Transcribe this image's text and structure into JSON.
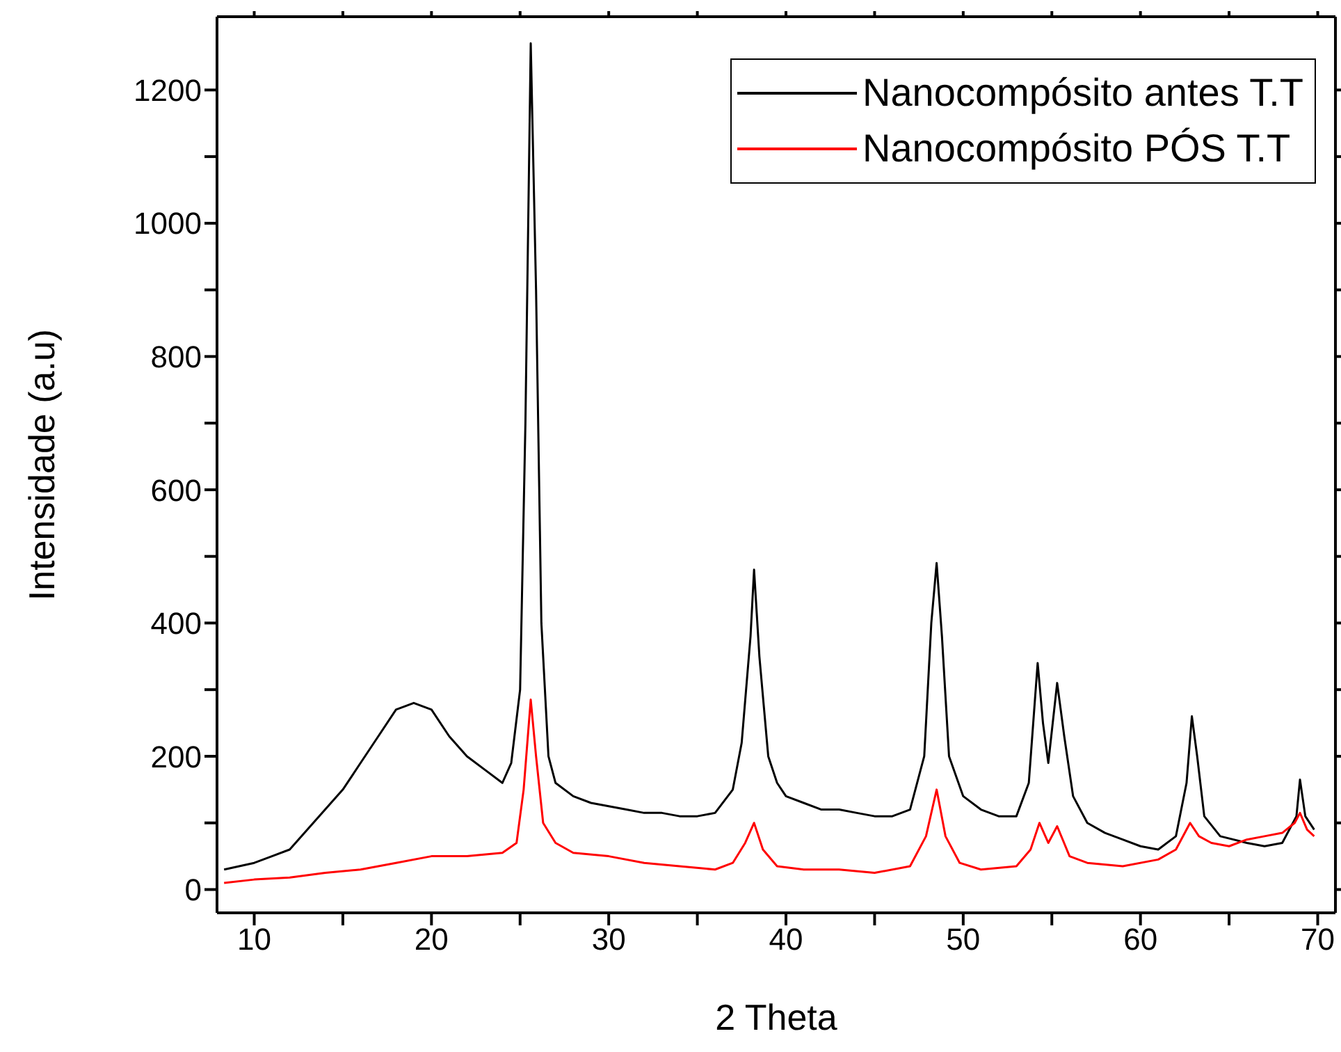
{
  "chart_data": {
    "type": "line",
    "xlabel": "2 Theta",
    "ylabel": "Intensidade (a.u)",
    "xlim": [
      7.9,
      71
    ],
    "ylim": [
      -35,
      1310
    ],
    "xticks": [
      10,
      {
        "value": 15,
        "label": null
      },
      20,
      {
        "value": 25,
        "label": null
      },
      30,
      {
        "value": 35,
        "label": null
      },
      40,
      {
        "value": 45,
        "label": null
      },
      50,
      {
        "value": 55,
        "label": null
      },
      60,
      {
        "value": 65,
        "label": null
      },
      70
    ],
    "yticks": [
      0,
      {
        "value": 100,
        "label": null
      },
      200,
      {
        "value": 300,
        "label": null
      },
      400,
      {
        "value": 500,
        "label": null
      },
      600,
      {
        "value": 700,
        "label": null
      },
      800,
      {
        "value": 900,
        "label": null
      },
      1000,
      {
        "value": 1100,
        "label": null
      },
      1200
    ],
    "grid": false,
    "legend": "top right",
    "marker": "none",
    "line_style": "solid",
    "series": [
      {
        "name": "Nanocompósito antes T.T",
        "color": "#000000",
        "x": [
          8.3,
          10,
          11,
          12,
          13,
          14,
          15,
          16,
          17,
          18,
          19,
          20,
          21,
          22,
          23,
          24,
          24.5,
          25,
          25.3,
          25.6,
          25.9,
          26.2,
          26.6,
          27,
          28,
          29,
          30,
          31,
          32,
          33,
          34,
          35,
          36,
          37,
          37.5,
          38,
          38.2,
          38.5,
          39,
          39.5,
          40,
          41,
          42,
          43,
          44,
          45,
          46,
          47,
          47.8,
          48.2,
          48.5,
          48.8,
          49.2,
          50,
          51,
          52,
          53,
          53.7,
          54.2,
          54.5,
          54.8,
          55.3,
          55.7,
          56.2,
          57,
          58,
          59,
          60,
          61,
          62,
          62.6,
          62.9,
          63.2,
          63.6,
          64.5,
          66,
          67,
          68,
          68.8,
          69,
          69.3,
          69.8
        ],
        "values": [
          30,
          40,
          50,
          60,
          90,
          120,
          150,
          190,
          230,
          270,
          280,
          270,
          230,
          200,
          180,
          160,
          190,
          300,
          700,
          1270,
          900,
          400,
          200,
          160,
          140,
          130,
          125,
          120,
          115,
          115,
          110,
          110,
          115,
          150,
          220,
          380,
          480,
          350,
          200,
          160,
          140,
          130,
          120,
          120,
          115,
          110,
          110,
          120,
          200,
          400,
          490,
          380,
          200,
          140,
          120,
          110,
          110,
          160,
          340,
          250,
          190,
          310,
          230,
          140,
          100,
          85,
          75,
          65,
          60,
          80,
          160,
          260,
          200,
          110,
          80,
          70,
          65,
          70,
          110,
          165,
          110,
          90
        ]
      },
      {
        "name": "Nanocompósito PÓS T.T",
        "color": "#ff0000",
        "x": [
          8.3,
          10,
          12,
          14,
          16,
          18,
          20,
          22,
          24,
          24.8,
          25.2,
          25.6,
          25.9,
          26.3,
          27,
          28,
          30,
          32,
          34,
          36,
          37,
          37.7,
          38.2,
          38.7,
          39.5,
          41,
          43,
          45,
          47,
          47.9,
          48.5,
          49,
          49.8,
          51,
          53,
          53.8,
          54.3,
          54.8,
          55.3,
          56,
          57,
          59,
          61,
          62,
          62.8,
          63.3,
          64,
          65,
          66,
          67,
          68,
          68.7,
          69,
          69.4,
          69.8
        ],
        "values": [
          10,
          15,
          18,
          25,
          30,
          40,
          50,
          50,
          55,
          70,
          150,
          285,
          200,
          100,
          70,
          55,
          50,
          40,
          35,
          30,
          40,
          70,
          100,
          60,
          35,
          30,
          30,
          25,
          35,
          80,
          150,
          80,
          40,
          30,
          35,
          60,
          100,
          70,
          95,
          50,
          40,
          35,
          45,
          60,
          100,
          80,
          70,
          65,
          75,
          80,
          85,
          100,
          115,
          90,
          80
        ]
      }
    ]
  }
}
